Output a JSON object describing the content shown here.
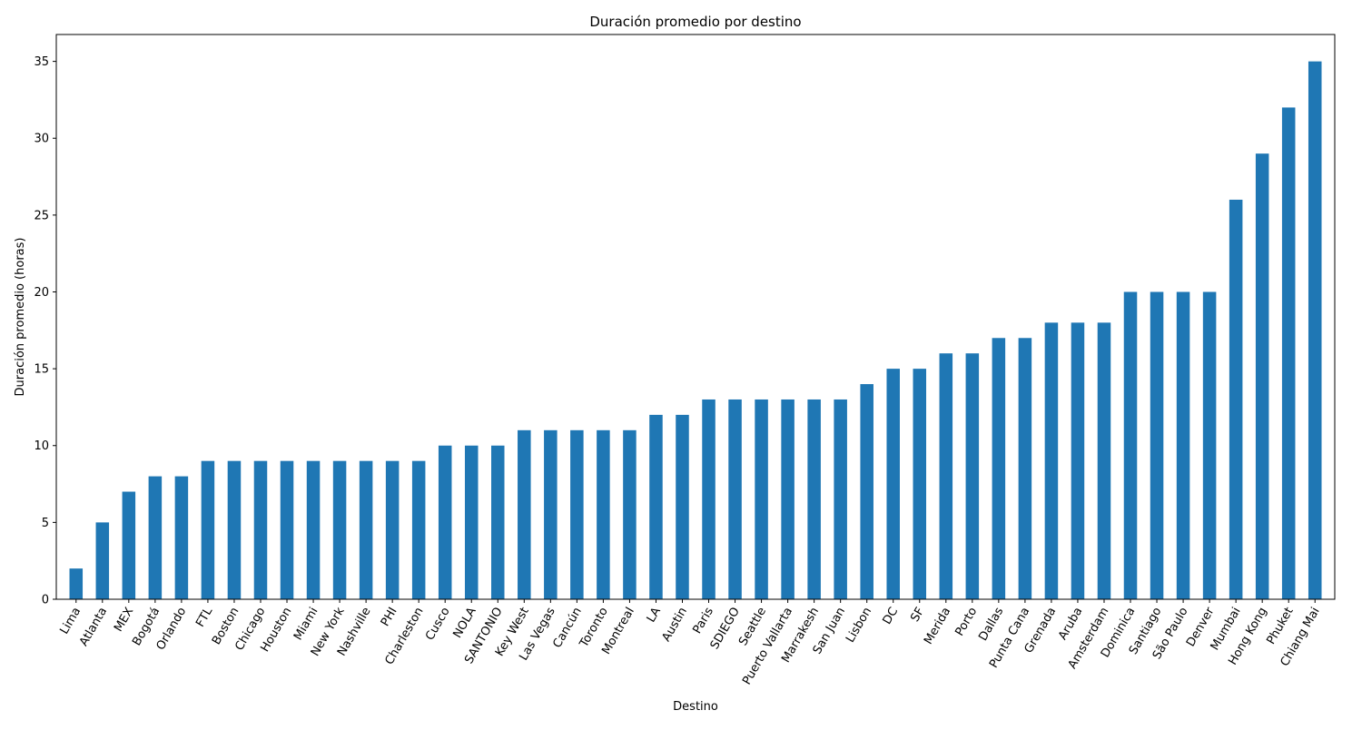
{
  "chart_data": {
    "type": "bar",
    "title": "Duración promedio por destino",
    "xlabel": "Destino",
    "ylabel": "Duración promedio (horas)",
    "ylim": [
      0,
      36.75
    ],
    "yticks": [
      0,
      5,
      10,
      15,
      20,
      25,
      30,
      35
    ],
    "grid": false,
    "legend": "none",
    "bar_color": "#1f77b4",
    "categories": [
      "Lima",
      "Atlanta",
      "MEX",
      "Bogotá",
      "Orlando",
      "FTL",
      "Boston",
      "Chicago",
      "Houston",
      "Miami",
      "New York",
      "Nashville",
      "PHI",
      "Charleston",
      "Cusco",
      "NOLA",
      "SANTONIO",
      "Key West",
      "Las Vegas",
      "Cancún",
      "Toronto",
      "Montreal",
      "LA",
      "Austin",
      "Paris",
      "SDIEGO",
      "Seattle",
      "Puerto Vallarta",
      "Marrakesh",
      "San Juan",
      "Lisbon",
      "DC",
      "SF",
      "Merida",
      "Porto",
      "Dallas",
      "Punta Cana",
      "Grenada",
      "Aruba",
      "Amsterdam",
      "Dominica",
      "Santiago",
      "São Paulo",
      "Denver",
      "Mumbai",
      "Hong Kong",
      "Phuket",
      "Chiang Mai"
    ],
    "values": [
      2,
      5,
      7,
      8,
      8,
      9,
      9,
      9,
      9,
      9,
      9,
      9,
      9,
      9,
      10,
      10,
      10,
      11,
      11,
      11,
      11,
      11,
      12,
      12,
      13,
      13,
      13,
      13,
      13,
      13,
      14,
      15,
      15,
      16,
      16,
      17,
      17,
      18,
      18,
      18,
      20,
      20,
      20,
      20,
      26,
      29,
      32,
      35
    ]
  }
}
